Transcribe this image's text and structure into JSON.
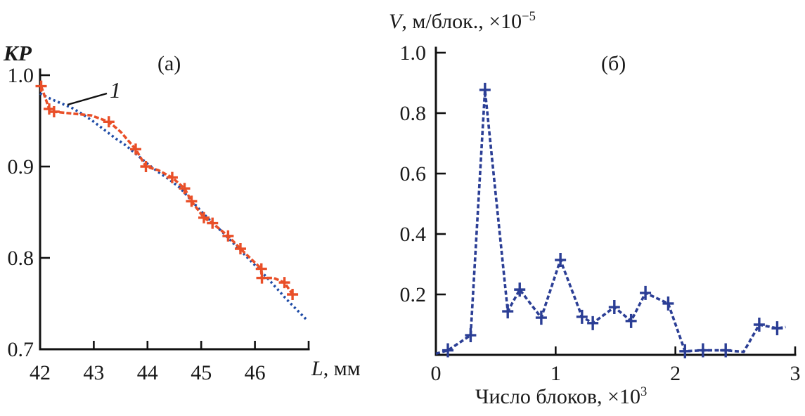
{
  "figure": {
    "panel_a": {
      "label": "(а)",
      "y_title": "КР",
      "x_label_main": "L",
      "x_label_rest": ", мм",
      "curve_label": "1"
    },
    "panel_b": {
      "label": "(б)",
      "y_title_main": "V",
      "y_title_rest": ", м/блок., ×10",
      "y_title_sup": "−5",
      "x_label_main": "Число блоков, ×10",
      "x_label_sup": "3"
    }
  },
  "chart_data": [
    {
      "type": "line",
      "panel": "(а)",
      "title": "",
      "xlabel": "L, мм",
      "ylabel": "КР",
      "xlim": [
        42,
        47
      ],
      "ylim": [
        0.7,
        1.0
      ],
      "grid": false,
      "xtick_values": [
        42,
        43,
        44,
        45,
        46,
        47
      ],
      "xtick_labels": [
        "42",
        "43",
        "44",
        "45",
        "46",
        ""
      ],
      "ytick_values": [
        0.7,
        0.8,
        0.9,
        1.0
      ],
      "ytick_labels": [
        "0.7",
        "0.8",
        "0.9",
        "1.0"
      ],
      "annotation": {
        "text": "1",
        "points_to": "model-curve"
      },
      "series": [
        {
          "name": "1",
          "color": "#1e4ba6",
          "line": "dotted",
          "marker": "none",
          "points": [
            [
              42.0,
              0.98,
              0
            ],
            [
              42.2,
              0.974,
              0
            ],
            [
              42.4,
              0.969,
              0
            ],
            [
              42.6,
              0.964,
              0
            ],
            [
              42.8,
              0.957,
              0
            ],
            [
              43.0,
              0.949,
              0
            ],
            [
              43.2,
              0.94,
              0
            ],
            [
              43.4,
              0.931,
              0
            ],
            [
              43.6,
              0.923,
              0
            ],
            [
              43.8,
              0.913,
              0
            ],
            [
              44.0,
              0.903,
              0
            ],
            [
              44.2,
              0.894,
              0
            ],
            [
              44.4,
              0.886,
              0
            ],
            [
              44.6,
              0.877,
              0
            ],
            [
              44.8,
              0.864,
              0
            ],
            [
              45.0,
              0.851,
              0
            ],
            [
              45.2,
              0.839,
              0
            ],
            [
              45.4,
              0.828,
              0
            ],
            [
              45.6,
              0.816,
              0
            ],
            [
              45.8,
              0.804,
              0
            ],
            [
              46.0,
              0.792,
              0
            ],
            [
              46.2,
              0.78,
              0
            ],
            [
              46.4,
              0.767,
              0
            ],
            [
              46.6,
              0.754,
              0
            ],
            [
              46.8,
              0.742,
              0
            ],
            [
              46.95,
              0.733,
              0
            ]
          ]
        },
        {
          "name": "",
          "color": "#e94f28",
          "line": "dashed",
          "marker": "plus",
          "points": [
            [
              42.02,
              0.988,
              1
            ],
            [
              42.17,
              0.963,
              1
            ],
            [
              42.26,
              0.96,
              1
            ],
            [
              42.6,
              0.958,
              0
            ],
            [
              42.95,
              0.956,
              0
            ],
            [
              43.28,
              0.949,
              1
            ],
            [
              43.5,
              0.938,
              0
            ],
            [
              43.78,
              0.919,
              1
            ],
            [
              43.97,
              0.9,
              1
            ],
            [
              44.2,
              0.896,
              0
            ],
            [
              44.46,
              0.888,
              1
            ],
            [
              44.69,
              0.876,
              1
            ],
            [
              44.82,
              0.862,
              1
            ],
            [
              45.05,
              0.844,
              1
            ],
            [
              45.21,
              0.838,
              1
            ],
            [
              45.5,
              0.824,
              1
            ],
            [
              45.73,
              0.81,
              1
            ],
            [
              46.12,
              0.788,
              1
            ],
            [
              46.13,
              0.778,
              1
            ],
            [
              46.35,
              0.778,
              0
            ],
            [
              46.55,
              0.773,
              1
            ],
            [
              46.7,
              0.76,
              1
            ]
          ]
        }
      ]
    },
    {
      "type": "line",
      "panel": "(б)",
      "title": "",
      "xlabel": "Число блоков, ×10³",
      "ylabel": "V, м/блок., ×10⁻⁵",
      "xlim": [
        0,
        3
      ],
      "ylim": [
        0,
        1.0
      ],
      "grid": false,
      "xtick_values": [
        0,
        1,
        2,
        3
      ],
      "xtick_labels": [
        "0",
        "1",
        "2",
        "3"
      ],
      "ytick_values": [
        0.2,
        0.4,
        0.6,
        0.8,
        1.0
      ],
      "ytick_labels": [
        "0.2",
        "0.4",
        "0.6",
        "0.8",
        "1.0"
      ],
      "series": [
        {
          "name": "",
          "color": "#2b3e95",
          "line": "dashed",
          "marker": "plus",
          "points": [
            [
              0.0,
              0.004,
              0
            ],
            [
              0.1,
              0.015,
              1
            ],
            [
              0.29,
              0.065,
              1
            ],
            [
              0.41,
              0.877,
              1
            ],
            [
              0.6,
              0.144,
              1
            ],
            [
              0.7,
              0.216,
              1
            ],
            [
              0.88,
              0.123,
              1
            ],
            [
              1.04,
              0.314,
              1
            ],
            [
              1.22,
              0.126,
              1
            ],
            [
              1.31,
              0.105,
              1
            ],
            [
              1.49,
              0.158,
              1
            ],
            [
              1.63,
              0.112,
              1
            ],
            [
              1.75,
              0.205,
              1
            ],
            [
              1.94,
              0.17,
              1
            ],
            [
              2.08,
              0.012,
              1
            ],
            [
              2.23,
              0.015,
              1
            ],
            [
              2.42,
              0.015,
              1
            ],
            [
              2.57,
              0.01,
              0
            ],
            [
              2.7,
              0.1,
              1
            ],
            [
              2.85,
              0.088,
              1
            ],
            [
              2.92,
              0.092,
              0
            ]
          ]
        }
      ]
    }
  ]
}
